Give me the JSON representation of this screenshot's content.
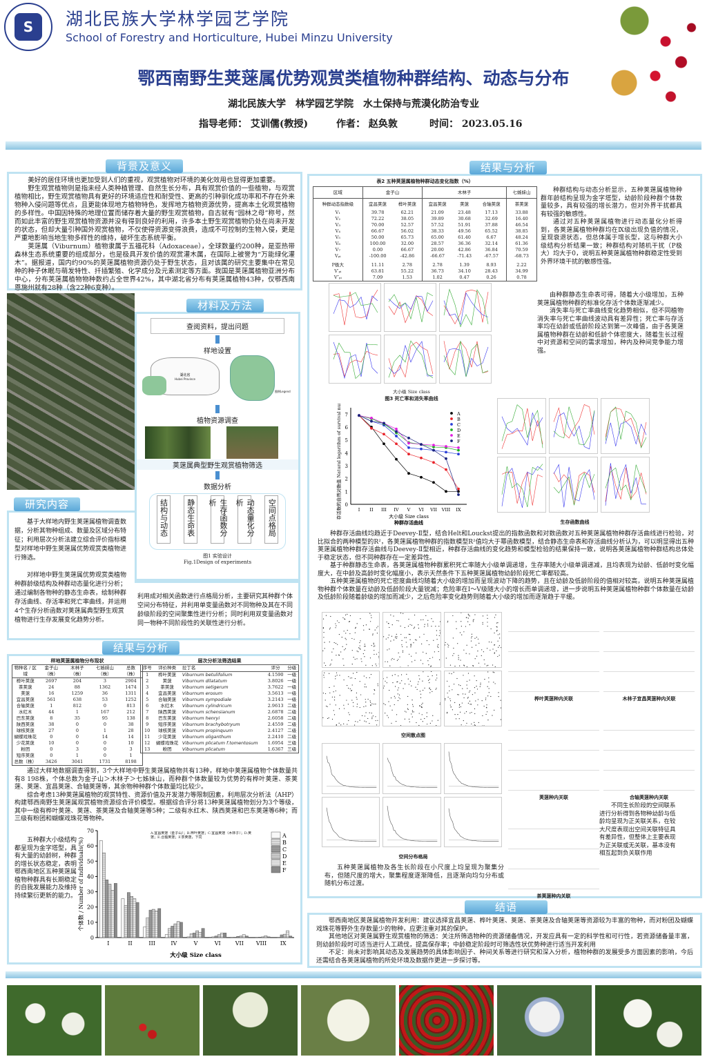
{
  "header": {
    "logo_text": "湖北民族大学",
    "college_cn": "湖北民族大学林学园艺学院",
    "college_en": "School of Forestry and Horticulture, Hubei Minzu University",
    "title": "鄂西南野生荚蒾属优势观赏类植物种群结构、动态与分布",
    "affiliation": "湖北民族大学　林学园艺学院　水土保持与荒漠化防治专业",
    "advisor": "指导老师：  艾训儒(教授)",
    "author": "作者：  赵奂敦",
    "date": "时间：  2023.05.16"
  },
  "background": {
    "heading": "背景及意义",
    "paragraphs": [
      "美好的居住环境也更加受到人们的重视，观赏植物对环境的美化效用也显得更加重要。",
      "野生观赏植物则是指未经人类种植管理、自然生长分布，具有观赏价值的一些植物，与观赏植物相比，野生观赏植物具有更好的环境适应性和耐受性、更高的引种驯化成功率和不存在外来物种入侵问题等优点，且更能体现地方植物特色，发挥地方植物资源优势，提高本土化观赏植物的多样性。中国因特殊的地理位置而储存着大量的野生观赏植物，自古就有“园林之母”称号，然而如此丰富的野生观赏植物资源并没有得到良好的利用，许多本土野生观赏植物仍处在尚未开发的状态，但却大量引种国外观赏植物，不仅使得资源变得浪费，造成不可控制的生物入侵，更是严重地影响当地生物多样性的维持，破坏生态系统平衡。",
      "荚蒾属（Viburnum）植物隶属于五福花科（Adoxaceae），全球数量约200种，是亚热带森林生态系统重要的组成部分，也是极具开发价值的观赏灌木属，在国际上被誉为“万能绿化灌木”。据报道，国内约90%的荚蒾属植物资源仍处于野生状态，且对该属的研究主要集中在常见种的种子休眠与萌发特性、扦插繁殖、化学成分及元素测定等方面。我国是荚蒾属植物亚洲分布中心，分布荚蒾属植物物种数约占全世界42%，其中湖北省分布有荚蒾属植物43种，仅鄂西南恩施州就有28种（含22种6变种）。"
    ]
  },
  "methods": {
    "heading": "材料及方法",
    "steps": [
      "查阅资料，提出问题",
      "样地设置",
      "植物资源调查",
      "荚蒾属典型野生观赏植物筛选",
      "数据分析"
    ],
    "map_labels": {
      "province_cn": "湖北省",
      "province_en": "Hubei Province",
      "legend": "图例Legend"
    },
    "analysis_items": [
      "结构与动态",
      "静态生命表",
      "生存函数分析",
      "动态量化分析",
      "空间点格局"
    ],
    "fig_caption_cn": "图1 实验设计",
    "fig_caption_en": "Fig.1Design of experiments"
  },
  "research": {
    "heading": "研究内容",
    "p1": "基于大样地内野生荚蒾属植物调查数据，分析其物种组成、数量及区域分布特征；利用层次分析法建立综合评价指标模型对样地中野生荚蒾属优势观赏类植物进行筛选。",
    "p2": "对样地中野生荚蒾属优势观赏类植物种群龄级结构及种群动态量化进行分析；通过编制各物种的静态生命表，绘制种群存活曲线、存活率和死亡率曲线，并运用4个生存分析函数对荚蒾属典型野生观赏植物进行生存发展变化趋势分析。",
    "p3": "利用成对相关函数进行点格局分析，主要研究其种群个体空间分布特征，并利用单变量函数对不同物种及其在不同龄级阶段的空间聚集性进行分析；同时利用双变量函数对同一物种不同阶段性的关联性进行分析。"
  },
  "results_left": {
    "heading": "结果与分析",
    "table1": {
      "title": "样地荚蒾属植物分布现状",
      "headers": [
        "物种名 / 区域",
        "金子山（株）",
        "木林子（株）",
        "七姊妹山（株）",
        "总数（株）"
      ],
      "rows": [
        [
          "桦叶荚蒾",
          "2697",
          "204",
          "3",
          "2904"
        ],
        [
          "茶荚蒾",
          "24",
          "88",
          "1362",
          "1474"
        ],
        [
          "荚蒾",
          "16",
          "1259",
          "36",
          "1311"
        ],
        [
          "宜昌荚蒾",
          "561",
          "638",
          "53",
          "1252"
        ],
        [
          "合轴荚蒾",
          "1",
          "812",
          "0",
          "813"
        ],
        [
          "水红木",
          "44",
          "1",
          "167",
          "212"
        ],
        [
          "巴东荚蒾",
          "8",
          "35",
          "95",
          "138"
        ],
        [
          "陕西荚蒾",
          "38",
          "0",
          "0",
          "38"
        ],
        [
          "球核荚蒾",
          "27",
          "0",
          "1",
          "28"
        ],
        [
          "蝴蝶戏珠花",
          "0",
          "0",
          "14",
          "14"
        ],
        [
          "少花荚蒾",
          "10",
          "0",
          "0",
          "10"
        ],
        [
          "粉团",
          "0",
          "3",
          "0",
          "3"
        ],
        [
          "短序荚蒾",
          "0",
          "1",
          "0",
          "1"
        ],
        [
          "总数（株）",
          "3426",
          "3041",
          "1731",
          "8198"
        ]
      ]
    },
    "table3": {
      "title": "层次分析法筛选结果",
      "headers": [
        "序号",
        "评价种类",
        "拉丁名",
        "评分",
        "分级"
      ],
      "rows": [
        [
          "1",
          "桦叶荚蒾",
          "Viburnum betulifolium",
          "4.1590",
          "一级"
        ],
        [
          "2",
          "荚蒾",
          "Viburnum dilatatum",
          "3.8026",
          "一级"
        ],
        [
          "3",
          "茶荚蒾",
          "Viburnum setigerum",
          "3.7622",
          "一级"
        ],
        [
          "4",
          "宜昌荚蒾",
          "Viburnum erosum",
          "3.5613",
          "一级"
        ],
        [
          "5",
          "合轴荚蒾",
          "Viburnum sympodiale",
          "3.2143",
          "一级"
        ],
        [
          "6",
          "水红木",
          "Viburnum cylindricum",
          "2.9613",
          "二级"
        ],
        [
          "7",
          "陕西荚蒾",
          "Viburnum schensianum",
          "2.6878",
          "二级"
        ],
        [
          "8",
          "巴东荚蒾",
          "Viburnum henryi",
          "2.6058",
          "二级"
        ],
        [
          "9",
          "短序荚蒾",
          "Viburnum brachybotryum",
          "2.4559",
          "二级"
        ],
        [
          "10",
          "球核荚蒾",
          "Viburnum propinquum",
          "2.4127",
          "二级"
        ],
        [
          "11",
          "少花荚蒾",
          "Viburnum oliganthum",
          "2.2410",
          "二级"
        ],
        [
          "12",
          "蝴蝶戏珠花",
          "Viburnum plicatum f.tomentosum",
          "1.6954",
          "三级"
        ],
        [
          "13",
          "粉团",
          "Viburnum plicatum",
          "1.6367",
          "三级"
        ]
      ]
    },
    "p1": "通过大样地数据调查得到，3个大样地中野生荚蒾属植物共有13种，样地中荚蒾属植物个体数量共有8 198株，个体总数为金子山＞木林子＞七姊妹山，而种群个体数量较为优势的有桦叶荚蒾、茶荚蒾、荚蒾、宜昌荚蒾、合轴荚蒾等，其余物种种群个体数量均比较少。",
    "p2": "综合考虑13种荚蒾属植物的观赏特性、资源价值及开发潜力等限制因素，利用层次分析法（AHP）构建鄂西南野生荚蒾属观赏植物资源综合评价模型。根据综合评分将13种荚蒾属植物划分为3个等级，其中一级有桦叶荚蒾、荚蒾、茶荚蒾及合轴荚蒾等5种；二级有水红木、陕西荚蒾和巴东荚蒾等6种；而三级有粉团和蝴蝶戏珠花等物种。",
    "p3": "五种群大小级结构都呈现为金字塔型，具有大量的幼龄树，种群的增长状态稳定，表明鄂西南地区五种荚蒾属植物种群具有长期稳定的自我发展能力及维持持续繁衍更新的能力。"
  },
  "results_right": {
    "heading": "结果与分析",
    "table2": {
      "title": "表2 五种荚蒾属植物种群动态变化指数（%）",
      "region_label": "区域",
      "index_label": "种群动态指数级",
      "regions": [
        "金子山",
        "木林子",
        "七姊妹山"
      ],
      "species": [
        "宜昌荚蒾",
        "桦叶荚蒾",
        "宜昌荚蒾",
        "荚蒾",
        "合轴荚蒾",
        "茶荚蒾"
      ],
      "rows": [
        [
          "V₁",
          "39.78",
          "62.21",
          "21.09",
          "23.48",
          "17.13",
          "33.88"
        ],
        [
          "V₂",
          "72.22",
          "38.05",
          "39.89",
          "30.68",
          "32.69",
          "16.40"
        ],
        [
          "V₃",
          "70.00",
          "52.57",
          "57.52",
          "51.91",
          "37.88",
          "46.54"
        ],
        [
          "V₄",
          "66.67",
          "56.02",
          "38.33",
          "49.56",
          "65.52",
          "38.85"
        ],
        [
          "V₅",
          "50.00",
          "65.73",
          "65.00",
          "61.40",
          "6.67",
          "48.24"
        ],
        [
          "V₆",
          "100.00",
          "32.00",
          "28.57",
          "36.36",
          "32.14",
          "61.36"
        ],
        [
          "V₇",
          "0.00",
          "66.67",
          "20.00",
          "42.86",
          "36.84",
          "70.59"
        ],
        [
          "Vₚᵢ",
          "-100.00",
          "-42.86",
          "-66.67",
          "-71.43",
          "-67.57",
          "-68.73"
        ],
        [
          "P极大",
          "11.11",
          "2.78",
          "2.78",
          "1.39",
          "8.93",
          "2.22"
        ],
        [
          "V′ₚᵢ",
          "63.81",
          "55.22",
          "36.73",
          "34.10",
          "28.43",
          "34.99"
        ],
        [
          "V″ₚᵢ",
          "7.09",
          "1.53",
          "1.02",
          "0.47",
          "0.26",
          "0.78"
        ]
      ]
    },
    "text_dynamics": [
      "种群结构与动态分析显示，五种荚蒾属植物种群年龄结构呈现为金字塔型，幼龄阶段种群个体数量较多，具有较强的增长潜力，但对外界干扰都具有较强的敏感性。",
      "通过对五种荚蒾属植物进行动态量化分析得到，各荚蒾属植物种群均在Ⅸ级出现负值的情况，呈现衰退状态，但总体属于增长型，这与种群大小级结构分析结果一致；种群结构对随机干扰（P极大）均大于0，说明五种荚蒾属植物种群稳定性受到外界环境干扰的敏感性强。"
    ],
    "text_life": [
      "由种群静态生命表可得，随着大小级增加，五种荚蒾属植物种群的标准化存活个体数逐渐减少。",
      "消失率与死亡率曲线变化趋势相似，但不同植物消失率与死亡率曲线波动具有差异性；死亡率与存活率均在幼龄或低龄阶段达到第一次峰值，由于各荚蒾属植物种群在幼龄和低龄个体密度大，随着生长过程中对资源和空间的需求增加，种内及种间竞争能力增强。"
    ],
    "fig3_caption": "图3 死亡率和消失率曲线",
    "size_class_label": "大小级  Size class",
    "survival_caption": "种群存活曲线",
    "survival_fn_caption": "生存函数曲线",
    "text_survival": [
      "种群存活曲线均趋近于Deevey-Ⅱ型，结合Helt和Louckst提出的指数函数和对数函数对五种荚蒾属植物种群存活曲线进行检验，对比拟合的两种模型的R²，各荚蒾属植物种群的指数模型R²值均大于幂函数模型，结合静态生命表和存活曲线分析认为，可以明显得出五种荚蒾属植物种群存活曲线与Deevey-Ⅱ型相近，种群存活曲线的变化趋势和模型检验的结果保持一致，说明各荚蒾属植物种群结构总体处于稳定状态，但不同种群存在一定差异性。",
      "基于种群静态生命表，各荚蒾属植物种群累积死亡率随大小级单调递增，生存率随大小级单调递减，且均表现为幼龄、低龄时变化幅度大，在中龄及高龄时变化幅度小，表示天然条件下五种荚蒾属植物幼龄阶段死亡率都较高。",
      "五种荚蒾属植物的死亡密度曲线均随着大小级的增加而呈现波动下降的趋势，且在幼龄及低龄阶段的值相对较高，说明五种荚蒾属植物种群个体数量在幼龄及低龄阶段大量锐减；危险率在Ⅰ～Ⅴ级随大小的增长而单调递增，进一步说明五种荚蒾属植物种群个体数量在幼龄及低龄阶段随着龄级的增加而减少，之后危险率变化趋势则随着大小级的增加而逐渐趋于平缓。"
    ],
    "scatter_caption": "空间散点图",
    "pattern_caption": "空间分布格局",
    "text_spatial": "五种荚蒾属植物及各生长阶段在小尺度上均呈现为聚集分布，但随尺度的增大，聚集程度逐渐降低，且逐渐向均匀分布或随机分布过渡。",
    "assoc_captions": [
      "桦叶荚蒾种内关联",
      "木林子宜昌荚蒾种内关联",
      "荚蒾种内关联",
      "合轴荚蒾种内关联",
      "茶荚蒾种内关联"
    ],
    "text_assoc": "不同生长阶段的空间联系进行分析得到各物种幼龄与低龄均呈现为正关联关系，在较大尺度表现出空间关联特征具有差异性，但整体上主要表现为正关联或无关联，基本没有相互起到负关联作用"
  },
  "conclusion": {
    "heading": "结语",
    "paragraphs": [
      "鄂西南地区荚蒾属植物开发利用：建议选择宜昌荚蒾、桦叶荚蒾、荚蒾、茶荚蒾及合轴荚蒾等资源较为丰富的物种，而对粉团及蝴蝶戏珠花等野外生存数量少的物种，应更注重对其的保护。",
      "其他地区对荚蒾属野生观赏植物的筛选：关注所筛选物种的资源储备情况，开发应具有一定的科学性和可行性，若资源储备量丰富，则幼龄阶段时可适当进行人工疏伐，提高保存率；中龄稳定阶段时可筛选性状优势种进行适当开发利用",
      "不足：尚未对影响其动态及发展趋势的具体影响因子、种间关系等进行研究和深入分析，植物种群的发展受多方面因素的影响，今后还需结合各荚蒾属植物的所处环境及数据作更进一步探讨等。"
    ]
  },
  "colors": {
    "title_blue": "#2a3f8f",
    "section_blue": "#5aa7d8",
    "box_border": "#bfe3f2"
  },
  "chart_data": [
    {
      "type": "bar",
      "categories": [
        "I",
        "II",
        "III",
        "IV",
        "V",
        "VI",
        "VII",
        "VIII",
        "IX"
      ],
      "xlabel": "大小级  Size class",
      "ylabel": "个体数 / Number of individuals(%)",
      "ylim": [
        0,
        70
      ],
      "yticks": [
        0,
        10,
        20,
        30,
        40,
        50,
        60,
        70
      ],
      "legend": "top-right",
      "note": "A.宜昌荚蒾（金子山）；B.桦叶荚蒾；C.宜昌荚蒾（木林子）；D.荚蒾；E.合轴荚蒾；F.茶荚蒾，下同",
      "series": [
        {
          "name": "A",
          "values": [
            63.5,
            25.5,
            7,
            2,
            0.5,
            0.3,
            0.2,
            0,
            0
          ]
        },
        {
          "name": "B",
          "values": [
            55.5,
            21,
            13,
            6,
            2.5,
            0.5,
            0.3,
            0.2,
            0.2
          ]
        },
        {
          "name": "C",
          "values": [
            37.8,
            29.5,
            18,
            7.5,
            3,
            1,
            0.8,
            0.3,
            1.8
          ]
        },
        {
          "name": "D",
          "values": [
            35,
            27,
            18.5,
            9,
            4.5,
            2,
            1,
            0.5,
            2.2
          ]
        },
        {
          "name": "E",
          "values": [
            31,
            25.5,
            17.5,
            10.5,
            3.5,
            3,
            2,
            1.2,
            4.5
          ]
        },
        {
          "name": "F",
          "values": [
            35.5,
            23,
            19,
            10,
            6,
            3,
            1,
            0.5,
            1
          ]
        }
      ]
    },
    {
      "type": "line",
      "title": "种群存活曲线",
      "categories": [
        "I",
        "II",
        "III",
        "IV",
        "V",
        "VI",
        "VII",
        "VIII",
        "IX"
      ],
      "xlabel": "大小级  Size class",
      "ylabel": "存活数的自然对数值 Natural logarithm of survival number",
      "ylim": [
        0,
        7.5
      ],
      "yticks": [
        0,
        1,
        2,
        3,
        4,
        5,
        6,
        7
      ],
      "legend": "top-right",
      "series": [
        {
          "name": "A",
          "color": "#000000",
          "values": [
            6.9,
            6.0,
            4.7,
            3.5,
            2.4,
            2.1,
            1.7,
            1.0,
            1.0
          ]
        },
        {
          "name": "B",
          "color": "#e8232a",
          "values": [
            6.9,
            5.9,
            5.45,
            4.7,
            3.9,
            3.6,
            3.25,
            2.7,
            1.2
          ]
        },
        {
          "name": "C",
          "color": "#2a3fd8",
          "values": [
            6.9,
            6.45,
            6.15,
            5.3,
            4.4,
            4.3,
            4.2,
            4.05,
            3.9
          ]
        },
        {
          "name": "D",
          "color": "#22b022",
          "values": [
            6.9,
            6.65,
            6.25,
            5.55,
            4.8,
            4.65,
            4.45,
            4.4,
            4.2
          ]
        },
        {
          "name": "E",
          "color": "#e020e0",
          "values": [
            6.9,
            6.7,
            6.3,
            5.85,
            4.75,
            4.65,
            4.6,
            4.5,
            4.4
          ]
        },
        {
          "name": "F",
          "color": "#1a237e",
          "values": [
            6.9,
            6.45,
            6.3,
            5.65,
            5.15,
            4.65,
            4.2,
            3.55,
            0.75
          ]
        }
      ]
    }
  ]
}
